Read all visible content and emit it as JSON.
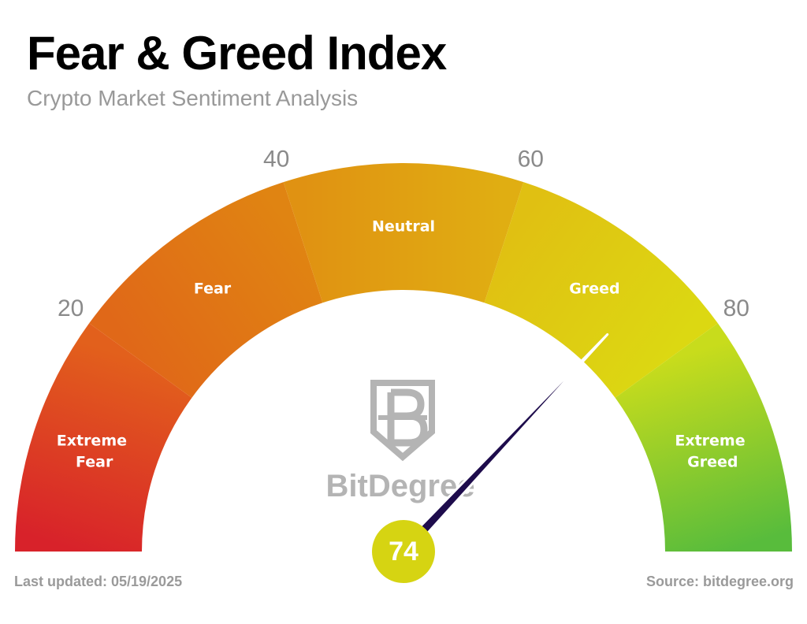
{
  "chart_data": {
    "type": "gauge",
    "title": "Fear & Greed Index",
    "subtitle": "Crypto Market Sentiment Analysis",
    "value": 74,
    "range": [
      0,
      100
    ],
    "ticks": [
      20,
      40,
      60,
      80
    ],
    "bands": [
      {
        "name": "Extreme Fear",
        "from": 0,
        "to": 20,
        "colors": [
          "#d8222a",
          "#e2601c"
        ]
      },
      {
        "name": "Fear",
        "from": 20,
        "to": 40,
        "colors": [
          "#e06818",
          "#e08412"
        ]
      },
      {
        "name": "Neutral",
        "from": 40,
        "to": 60,
        "colors": [
          "#e09212",
          "#e0ae12"
        ]
      },
      {
        "name": "Greed",
        "from": 60,
        "to": 80,
        "colors": [
          "#e0c012",
          "#dcd812"
        ]
      },
      {
        "name": "Extreme Greed",
        "from": 80,
        "to": 100,
        "colors": [
          "#c8dc1c",
          "#58bc3c"
        ]
      }
    ],
    "needle_color": "#1e0c4c",
    "value_color": "#d6d412",
    "watermark": "BitDegree",
    "footer_left": "Last updated: 05/19/2025",
    "footer_right": "Source: bitdegree.org"
  }
}
